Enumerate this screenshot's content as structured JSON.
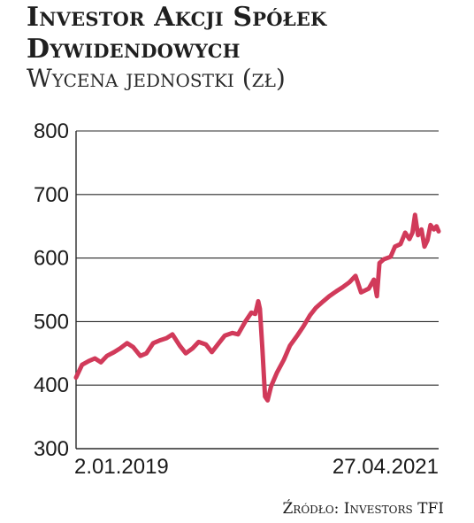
{
  "header": {
    "title_line1": "Investor Akcji Spółek",
    "title_line2": "Dywidendowych",
    "subtitle": "Wycena jednostki (zł)"
  },
  "source": "Źródło: Investors TFI",
  "colors": {
    "line": "#d13a5a",
    "grid": "#2a2a2a",
    "text": "#1a1a1a"
  },
  "chart_data": {
    "type": "line",
    "title": "Investor Akcji Spółek Dywidendowych",
    "subtitle": "Wycena jednostki (zł)",
    "xlabel": "",
    "ylabel": "",
    "ylim": [
      300,
      800
    ],
    "yticks": [
      300,
      400,
      500,
      600,
      700,
      800
    ],
    "xrange": [
      "2019-01-02",
      "2021-04-27"
    ],
    "xtick_labels": [
      {
        "date": "2019-01-02",
        "label": "2.01.2019"
      },
      {
        "date": "2021-04-27",
        "label": "27.04.2021"
      }
    ],
    "grid": "horizontal",
    "legend": "none",
    "series": [
      {
        "points": [
          [
            "2019-01-02",
            412
          ],
          [
            "2019-01-16",
            432
          ],
          [
            "2019-02-01",
            438
          ],
          [
            "2019-02-15",
            442
          ],
          [
            "2019-03-01",
            436
          ],
          [
            "2019-03-15",
            446
          ],
          [
            "2019-04-01",
            452
          ],
          [
            "2019-04-15",
            458
          ],
          [
            "2019-05-01",
            466
          ],
          [
            "2019-05-15",
            460
          ],
          [
            "2019-06-01",
            446
          ],
          [
            "2019-06-15",
            450
          ],
          [
            "2019-07-01",
            466
          ],
          [
            "2019-07-15",
            470
          ],
          [
            "2019-08-01",
            474
          ],
          [
            "2019-08-15",
            480
          ],
          [
            "2019-09-01",
            462
          ],
          [
            "2019-09-15",
            450
          ],
          [
            "2019-10-01",
            458
          ],
          [
            "2019-10-15",
            468
          ],
          [
            "2019-11-01",
            464
          ],
          [
            "2019-11-15",
            452
          ],
          [
            "2019-12-01",
            466
          ],
          [
            "2019-12-15",
            478
          ],
          [
            "2020-01-02",
            482
          ],
          [
            "2020-01-15",
            480
          ],
          [
            "2020-02-01",
            500
          ],
          [
            "2020-02-15",
            514
          ],
          [
            "2020-02-24",
            512
          ],
          [
            "2020-03-02",
            532
          ],
          [
            "2020-03-06",
            520
          ],
          [
            "2020-03-12",
            455
          ],
          [
            "2020-03-18",
            382
          ],
          [
            "2020-03-24",
            376
          ],
          [
            "2020-04-01",
            398
          ],
          [
            "2020-04-15",
            420
          ],
          [
            "2020-05-01",
            440
          ],
          [
            "2020-05-15",
            462
          ],
          [
            "2020-06-01",
            478
          ],
          [
            "2020-06-15",
            492
          ],
          [
            "2020-07-01",
            510
          ],
          [
            "2020-07-15",
            522
          ],
          [
            "2020-08-01",
            532
          ],
          [
            "2020-08-15",
            540
          ],
          [
            "2020-09-01",
            548
          ],
          [
            "2020-09-15",
            554
          ],
          [
            "2020-10-01",
            562
          ],
          [
            "2020-10-15",
            572
          ],
          [
            "2020-10-28",
            546
          ],
          [
            "2020-11-15",
            552
          ],
          [
            "2020-11-27",
            566
          ],
          [
            "2020-12-04",
            540
          ],
          [
            "2020-12-10",
            592
          ],
          [
            "2020-12-20",
            598
          ],
          [
            "2021-01-05",
            602
          ],
          [
            "2021-01-15",
            618
          ],
          [
            "2021-01-28",
            622
          ],
          [
            "2021-02-08",
            640
          ],
          [
            "2021-02-18",
            630
          ],
          [
            "2021-02-25",
            640
          ],
          [
            "2021-03-03",
            668
          ],
          [
            "2021-03-10",
            636
          ],
          [
            "2021-03-18",
            645
          ],
          [
            "2021-03-25",
            618
          ],
          [
            "2021-04-01",
            628
          ],
          [
            "2021-04-08",
            652
          ],
          [
            "2021-04-16",
            645
          ],
          [
            "2021-04-22",
            650
          ],
          [
            "2021-04-27",
            642
          ]
        ]
      }
    ]
  }
}
